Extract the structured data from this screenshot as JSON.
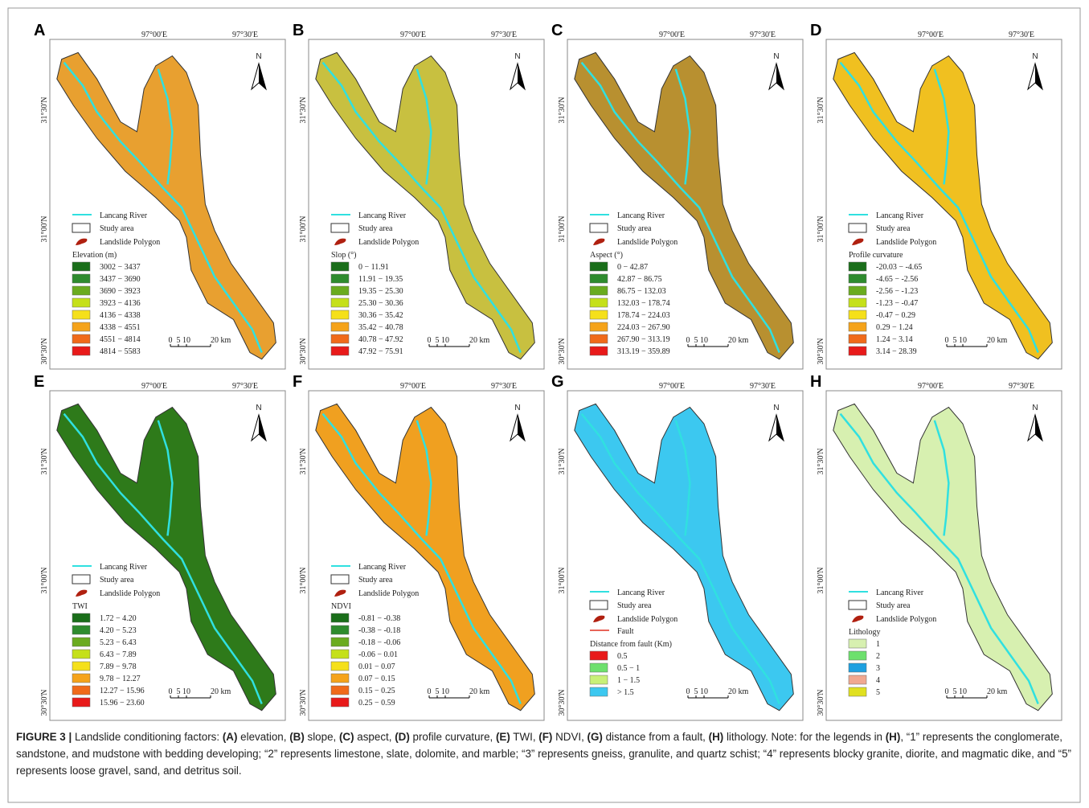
{
  "lon_labels": [
    "97°00'E",
    "97°30'E"
  ],
  "lat_labels": [
    "31°30'N",
    "31°00'N",
    "30°30'N"
  ],
  "north": "N",
  "scale_labels": [
    "0",
    "5",
    "10",
    "20 km"
  ],
  "legend_common": [
    "Lancang River",
    "Study area",
    "Landslide Polygon"
  ],
  "panels": [
    {
      "letter": "A",
      "map_color": "#e8a030",
      "legend_title": "Elevation (m)",
      "classes": [
        {
          "label": "3002 − 3437",
          "color": "#1a6e1a"
        },
        {
          "label": "3437 − 3690",
          "color": "#2e8b2e"
        },
        {
          "label": "3690 − 3923",
          "color": "#6aab1f"
        },
        {
          "label": "3923 − 4136",
          "color": "#c5e01a"
        },
        {
          "label": "4136 − 4338",
          "color": "#f5e01a"
        },
        {
          "label": "4338 − 4551",
          "color": "#f5a31a"
        },
        {
          "label": "4551 − 4814",
          "color": "#f06a1a"
        },
        {
          "label": "4814 − 5583",
          "color": "#e81a1a"
        }
      ]
    },
    {
      "letter": "B",
      "map_color": "#c8c040",
      "legend_title": "Slop (°)",
      "classes": [
        {
          "label": "0 − 11.91",
          "color": "#1a6e1a"
        },
        {
          "label": "11.91 − 19.35",
          "color": "#2e8b2e"
        },
        {
          "label": "19.35 − 25.30",
          "color": "#6aab1f"
        },
        {
          "label": "25.30 − 30.36",
          "color": "#c5e01a"
        },
        {
          "label": "30.36 − 35.42",
          "color": "#f5e01a"
        },
        {
          "label": "35.42 − 40.78",
          "color": "#f5a31a"
        },
        {
          "label": "40.78 − 47.92",
          "color": "#f06a1a"
        },
        {
          "label": "47.92 − 75.91",
          "color": "#e81a1a"
        }
      ]
    },
    {
      "letter": "C",
      "map_color": "#b89030",
      "legend_title": "Aspect (°)",
      "classes": [
        {
          "label": "0 − 42.87",
          "color": "#1a6e1a"
        },
        {
          "label": "42.87 − 86.75",
          "color": "#2e8b2e"
        },
        {
          "label": "86.75 − 132.03",
          "color": "#6aab1f"
        },
        {
          "label": "132.03 − 178.74",
          "color": "#c5e01a"
        },
        {
          "label": "178.74 − 224.03",
          "color": "#f5e01a"
        },
        {
          "label": "224.03 − 267.90",
          "color": "#f5a31a"
        },
        {
          "label": "267.90 − 313.19",
          "color": "#f06a1a"
        },
        {
          "label": "313.19 − 359.89",
          "color": "#e81a1a"
        }
      ]
    },
    {
      "letter": "D",
      "map_color": "#f0c020",
      "legend_title": "Profile curvature",
      "classes": [
        {
          "label": "-20.03 − -4.65",
          "color": "#1a6e1a"
        },
        {
          "label": "-4.65 − -2.56",
          "color": "#2e8b2e"
        },
        {
          "label": "-2.56 − -1.23",
          "color": "#6aab1f"
        },
        {
          "label": "-1.23 − -0.47",
          "color": "#c5e01a"
        },
        {
          "label": "-0.47 − 0.29",
          "color": "#f5e01a"
        },
        {
          "label": "0.29 − 1.24",
          "color": "#f5a31a"
        },
        {
          "label": "1.24 − 3.14",
          "color": "#f06a1a"
        },
        {
          "label": "3.14 − 28.39",
          "color": "#e81a1a"
        }
      ]
    },
    {
      "letter": "E",
      "map_color": "#2e7a1a",
      "legend_title": "TWI",
      "classes": [
        {
          "label": "1.72 − 4.20",
          "color": "#1a6e1a"
        },
        {
          "label": "4.20 − 5.23",
          "color": "#2e8b2e"
        },
        {
          "label": "5.23 − 6.43",
          "color": "#6aab1f"
        },
        {
          "label": "6.43 − 7.89",
          "color": "#c5e01a"
        },
        {
          "label": "7.89 − 9.78",
          "color": "#f5e01a"
        },
        {
          "label": "9.78 − 12.27",
          "color": "#f5a31a"
        },
        {
          "label": "12.27 − 15.96",
          "color": "#f06a1a"
        },
        {
          "label": "15.96 − 23.60",
          "color": "#e81a1a"
        }
      ]
    },
    {
      "letter": "F",
      "map_color": "#f0a020",
      "legend_title": "NDVI",
      "classes": [
        {
          "label": "-0.81 − -0.38",
          "color": "#1a6e1a"
        },
        {
          "label": "-0.38 − -0.18",
          "color": "#2e8b2e"
        },
        {
          "label": "-0.18 − -0.06",
          "color": "#6aab1f"
        },
        {
          "label": "-0.06 − 0.01",
          "color": "#c5e01a"
        },
        {
          "label": "0.01 − 0.07",
          "color": "#f5e01a"
        },
        {
          "label": "0.07 − 0.15",
          "color": "#f5a31a"
        },
        {
          "label": "0.15 − 0.25",
          "color": "#f06a1a"
        },
        {
          "label": "0.25 − 0.59",
          "color": "#e81a1a"
        }
      ]
    },
    {
      "letter": "G",
      "map_color": "#3cc8f0",
      "extra_legend": "Fault",
      "legend_title": "Distance from fault (Km)",
      "classes": [
        {
          "label": "0.5",
          "color": "#e81a1a"
        },
        {
          "label": "0.5 − 1",
          "color": "#6de06d"
        },
        {
          "label": "1 − 1.5",
          "color": "#c8f078"
        },
        {
          "label": "> 1.5",
          "color": "#3cc8f0"
        }
      ]
    },
    {
      "letter": "H",
      "map_color": "#d7f0b0",
      "legend_title": "Lithology",
      "classes": [
        {
          "label": "1",
          "color": "#d7f0b0"
        },
        {
          "label": "2",
          "color": "#6de06d"
        },
        {
          "label": "3",
          "color": "#1ea0e0"
        },
        {
          "label": "4",
          "color": "#f0a890"
        },
        {
          "label": "5",
          "color": "#e0e020"
        }
      ]
    }
  ],
  "caption": [
    {
      "text": "FIGURE 3 |",
      "bold": true
    },
    {
      "text": " Landslide conditioning factors: ",
      "bold": false
    },
    {
      "text": "(A)",
      "bold": true
    },
    {
      "text": " elevation, ",
      "bold": false
    },
    {
      "text": "(B)",
      "bold": true
    },
    {
      "text": " slope, ",
      "bold": false
    },
    {
      "text": "(C)",
      "bold": true
    },
    {
      "text": " aspect, ",
      "bold": false
    },
    {
      "text": "(D)",
      "bold": true
    },
    {
      "text": " profile curvature, ",
      "bold": false
    },
    {
      "text": "(E)",
      "bold": true
    },
    {
      "text": " TWI, ",
      "bold": false
    },
    {
      "text": "(F)",
      "bold": true
    },
    {
      "text": " NDVI, ",
      "bold": false
    },
    {
      "text": "(G)",
      "bold": true
    },
    {
      "text": " distance from a fault, ",
      "bold": false
    },
    {
      "text": "(H)",
      "bold": true
    },
    {
      "text": " lithology. Note: for the legends in ",
      "bold": false
    },
    {
      "text": "(H)",
      "bold": true
    },
    {
      "text": ", “1” represents the conglomerate, sandstone, and mudstone with bedding developing; “2” represents limestone, slate, dolomite, and marble; “3” represents gneiss, granulite, and quartz schist; “4” represents blocky granite, diorite, and magmatic dike, and “5” represents loose gravel, sand, and detritus soil.",
      "bold": false
    }
  ]
}
